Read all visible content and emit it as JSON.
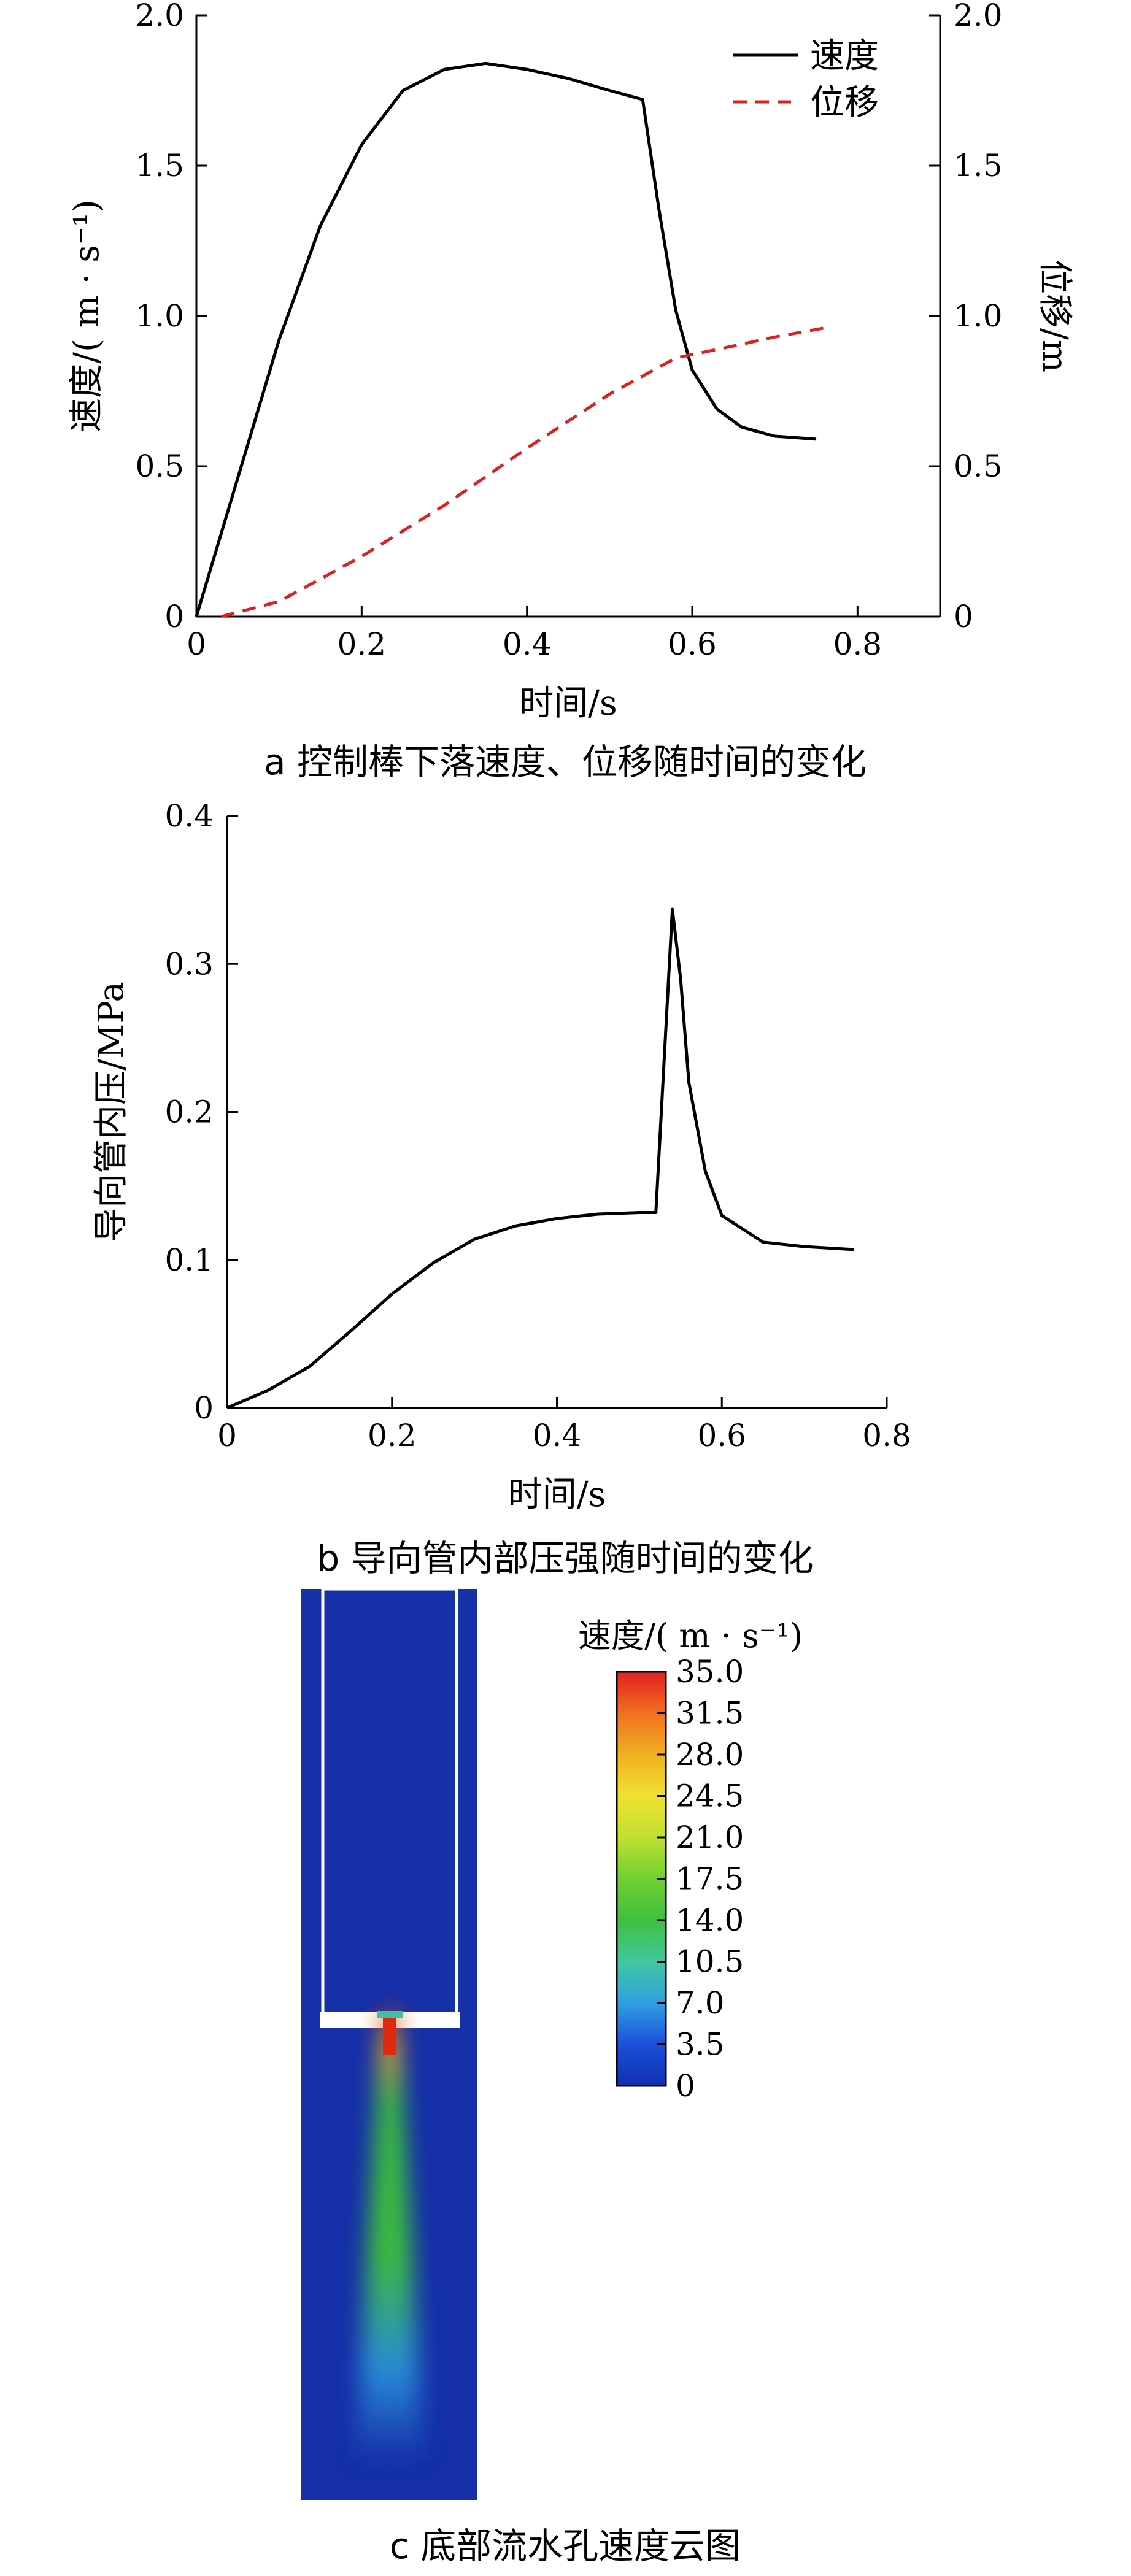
{
  "chart_data": [
    {
      "type": "line",
      "caption": "a  控制棒下落速度、位移随时间的变化",
      "xlabel": "时间/s",
      "ylabel_left": "速度/( m · s⁻¹)",
      "ylabel_right": "位移/m",
      "xlim": [
        0,
        0.9
      ],
      "ylim_left": [
        0,
        2.0
      ],
      "ylim_right": [
        0,
        2.0
      ],
      "x_ticks": [
        "0",
        "0.2",
        "0.4",
        "0.6",
        "0.8"
      ],
      "y_ticks_left": [
        "0",
        "0.5",
        "1.0",
        "1.5",
        "2.0"
      ],
      "y_ticks_right": [
        "0",
        "0.5",
        "1.0",
        "1.5",
        "2.0"
      ],
      "legend_position": "top-right",
      "series": [
        {
          "name": "速度",
          "axis": "left",
          "color": "#000000",
          "style": "solid",
          "x": [
            0,
            0.05,
            0.1,
            0.15,
            0.2,
            0.25,
            0.3,
            0.35,
            0.4,
            0.45,
            0.5,
            0.54,
            0.56,
            0.58,
            0.6,
            0.63,
            0.66,
            0.7,
            0.75
          ],
          "y": [
            0,
            0.46,
            0.92,
            1.3,
            1.57,
            1.75,
            1.82,
            1.84,
            1.82,
            1.79,
            1.75,
            1.72,
            1.35,
            1.02,
            0.82,
            0.69,
            0.63,
            0.6,
            0.59
          ]
        },
        {
          "name": "位移",
          "axis": "right",
          "color": "#e02020",
          "style": "dashed",
          "x": [
            0.03,
            0.1,
            0.2,
            0.3,
            0.4,
            0.5,
            0.58,
            0.65,
            0.7,
            0.76
          ],
          "y": [
            0.0,
            0.05,
            0.2,
            0.37,
            0.56,
            0.74,
            0.86,
            0.9,
            0.93,
            0.96
          ]
        }
      ]
    },
    {
      "type": "line",
      "caption": "b  导向管内部压强随时间的变化",
      "xlabel": "时间/s",
      "ylabel": "导向管内压/MPa",
      "xlim": [
        0,
        0.8
      ],
      "ylim": [
        0,
        0.4
      ],
      "x_ticks": [
        "0",
        "0.2",
        "0.4",
        "0.6",
        "0.8"
      ],
      "y_ticks": [
        "0",
        "0.1",
        "0.2",
        "0.3",
        "0.4"
      ],
      "series": [
        {
          "color": "#000000",
          "x": [
            0,
            0.05,
            0.1,
            0.15,
            0.2,
            0.25,
            0.3,
            0.35,
            0.4,
            0.45,
            0.5,
            0.52,
            0.54,
            0.55,
            0.56,
            0.58,
            0.6,
            0.65,
            0.7,
            0.76
          ],
          "y": [
            0,
            0.012,
            0.028,
            0.052,
            0.077,
            0.098,
            0.114,
            0.123,
            0.128,
            0.131,
            0.132,
            0.132,
            0.337,
            0.29,
            0.22,
            0.16,
            0.13,
            0.112,
            0.109,
            0.107
          ]
        }
      ]
    },
    {
      "type": "heatmap",
      "caption": "c  底部流水孔速度云图",
      "colorbar_title": "速度/( m · s⁻¹)",
      "colorbar_ticks": [
        "35.0",
        "31.5",
        "28.0",
        "24.5",
        "21.0",
        "17.5",
        "14.0",
        "10.5",
        "7.0",
        "3.5",
        "0"
      ],
      "colorbar_range": [
        0,
        35.0
      ],
      "colors": {
        "background": "#1530a8",
        "tube_edge": "#ffffff",
        "jet_core": "#e02a10",
        "jet_mid": "#3ec23a",
        "jet_outer": "#2a8fd8"
      }
    }
  ]
}
